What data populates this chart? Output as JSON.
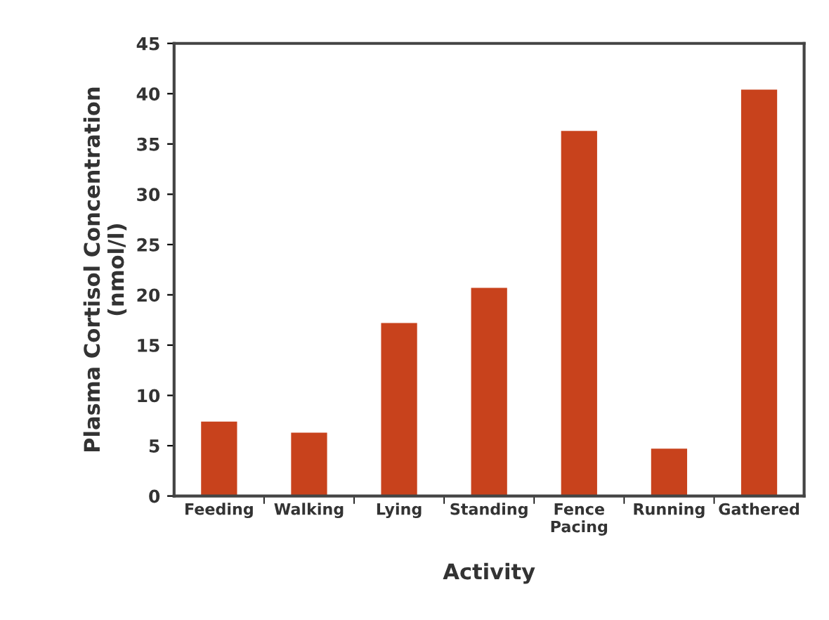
{
  "chart_data": {
    "type": "bar",
    "xlabel": "Activity",
    "ylabel": "Plasma Cortisol Concentration\n(nmol/l)",
    "categories": [
      "Feeding",
      "Walking",
      "Lying",
      "Standing",
      "Fence\nPacing",
      "Running",
      "Gathered"
    ],
    "values": [
      7.4,
      6.3,
      17.2,
      20.7,
      36.3,
      4.7,
      40.4
    ],
    "color": "#c8421c",
    "ylim": [
      0,
      45
    ],
    "yticks": [
      0,
      5,
      10,
      15,
      20,
      25,
      30,
      35,
      40,
      45
    ],
    "grid": false
  }
}
